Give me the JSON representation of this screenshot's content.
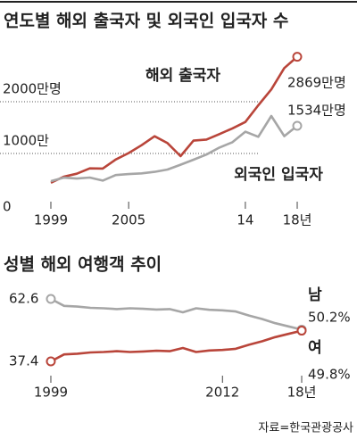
{
  "chart_data": [
    {
      "type": "line",
      "title": "연도별 해외 출국자 및 외국인 입국자 수",
      "x": [
        1999,
        2000,
        2001,
        2002,
        2003,
        2004,
        2005,
        2006,
        2007,
        2008,
        2009,
        2010,
        2011,
        2012,
        2013,
        2014,
        2015,
        2016,
        2017,
        2018
      ],
      "series": [
        {
          "name": "해외 출국자",
          "color": "#b9453a",
          "values": [
            434,
            551,
            608,
            712,
            709,
            883,
            1008,
            1161,
            1332,
            1200,
            949,
            1249,
            1269,
            1374,
            1485,
            1608,
            1931,
            2238,
            2650,
            2869
          ],
          "value_labels": [
            null,
            null,
            null,
            null,
            null,
            null,
            null,
            null,
            null,
            null,
            null,
            null,
            null,
            null,
            null,
            null,
            null,
            null,
            null,
            "2869만명"
          ]
        },
        {
          "name": "외국인 입국자",
          "color": "#a6a6a6",
          "values": [
            466,
            532,
            515,
            535,
            475,
            582,
            602,
            616,
            645,
            689,
            782,
            880,
            980,
            1114,
            1218,
            1420,
            1323,
            1724,
            1334,
            1534
          ],
          "value_labels": [
            null,
            null,
            null,
            null,
            null,
            null,
            null,
            null,
            null,
            null,
            null,
            null,
            null,
            null,
            null,
            null,
            null,
            null,
            null,
            "1534만명"
          ]
        }
      ],
      "xlim": [
        1996,
        2021
      ],
      "xticks": [
        1999,
        2005,
        {
          "value": 2014,
          "label": "14"
        },
        {
          "value": 2018,
          "label": "18년"
        }
      ],
      "ylim": [
        0,
        3000
      ],
      "yticks": [
        0,
        {
          "value": 1000,
          "label": "1000만"
        },
        {
          "value": 2000,
          "label": "2000만명"
        }
      ],
      "grid": true
    },
    {
      "type": "line",
      "title": "성별 해외 여행객 추이",
      "x": [
        1999,
        2000,
        2001,
        2002,
        2003,
        2004,
        2005,
        2006,
        2007,
        2008,
        2009,
        2010,
        2011,
        2012,
        2013,
        2014,
        2015,
        2016,
        2017,
        2018
      ],
      "series": [
        {
          "name": "남",
          "color": "#a6a6a6",
          "values": [
            62.6,
            59.8,
            59.5,
            59.0,
            58.8,
            58.5,
            58.8,
            58.6,
            58.3,
            58.5,
            57.2,
            58.8,
            58.2,
            58.0,
            57.5,
            55.9,
            54.5,
            52.8,
            51.5,
            50.2
          ],
          "value_labels": [
            "62.6",
            null,
            null,
            null,
            null,
            null,
            null,
            null,
            null,
            null,
            null,
            null,
            null,
            null,
            null,
            null,
            null,
            null,
            null,
            "50.2%"
          ]
        },
        {
          "name": "여",
          "color": "#b9453a",
          "values": [
            37.4,
            40.2,
            40.5,
            41.0,
            41.2,
            41.5,
            41.2,
            41.4,
            41.7,
            41.5,
            42.8,
            41.2,
            41.8,
            42.0,
            42.5,
            44.1,
            45.5,
            47.2,
            48.5,
            49.8
          ],
          "value_labels": [
            "37.4",
            null,
            null,
            null,
            null,
            null,
            null,
            null,
            null,
            null,
            null,
            null,
            null,
            null,
            null,
            null,
            null,
            null,
            null,
            "49.8%"
          ]
        }
      ],
      "xlim": [
        1996,
        2021
      ],
      "xticks": [
        1999,
        {
          "value": 2012,
          "label": "2012"
        },
        {
          "value": 2018,
          "label": "18년"
        }
      ],
      "ylim": [
        30,
        70
      ],
      "grid": false
    },
    {
      "type": "note",
      "source": "자료=한국관광공사"
    }
  ]
}
